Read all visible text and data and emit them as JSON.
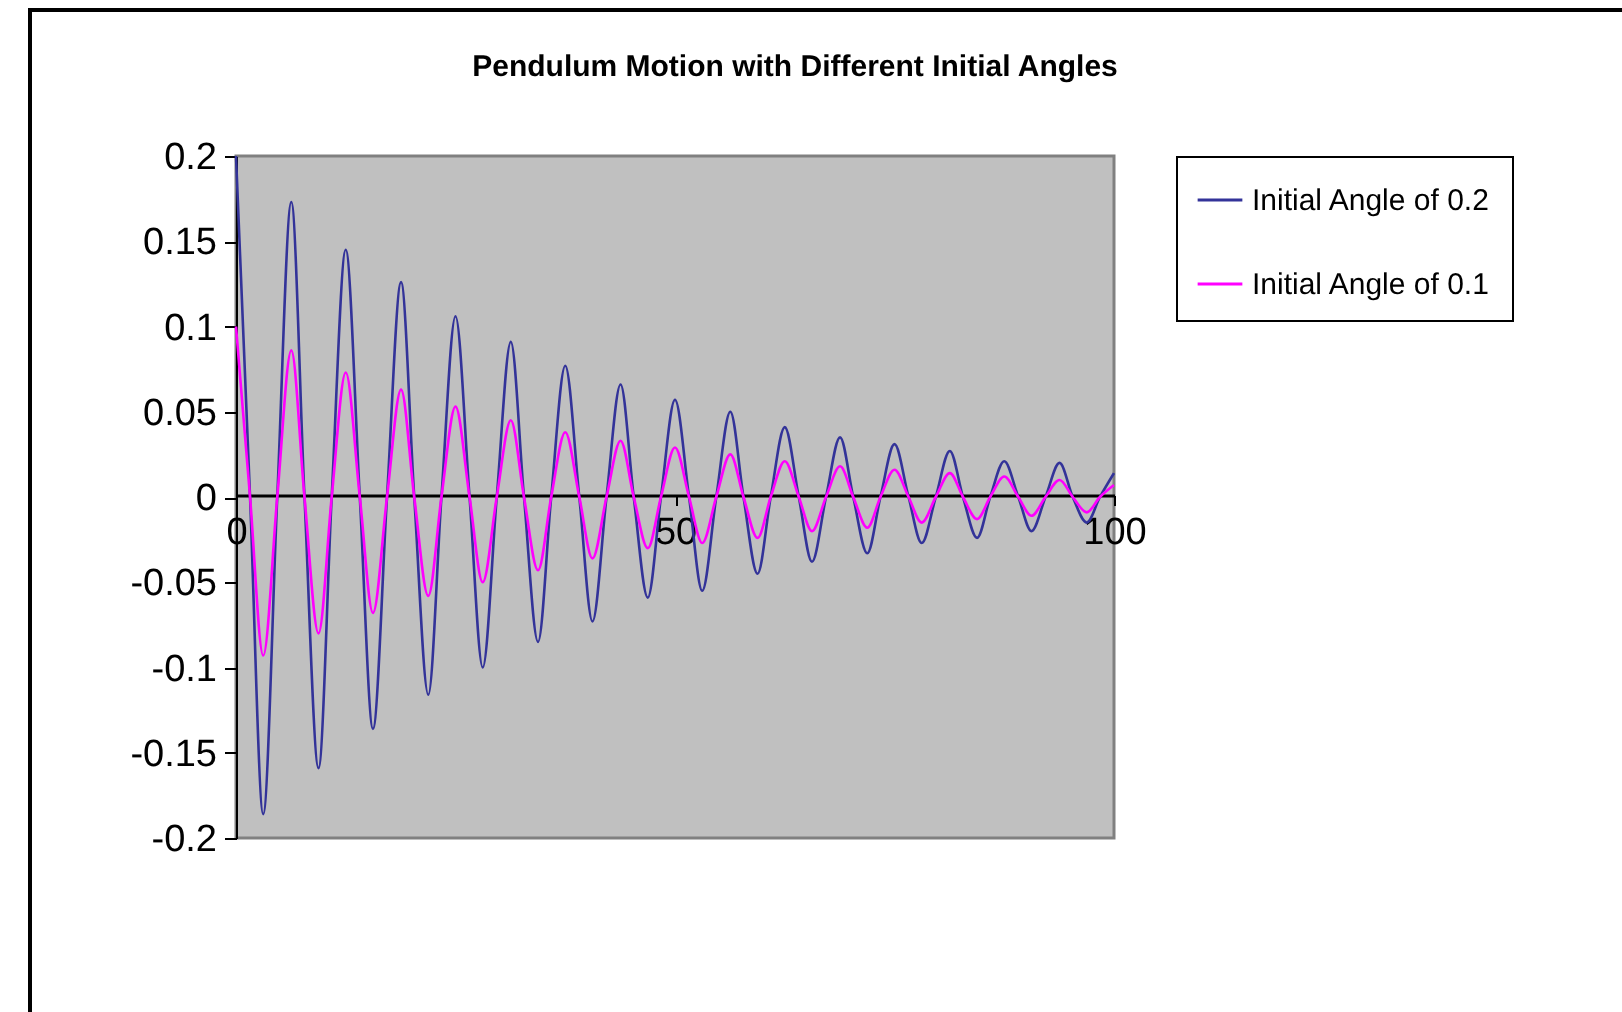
{
  "chart_data": {
    "type": "line",
    "title": "Pendulum Motion with Different Initial Angles",
    "x": [
      0,
      1.6,
      3.1,
      4.7,
      6.3,
      7.8,
      9.4,
      10.9,
      12.5,
      14.1,
      15.6,
      17.2,
      18.8,
      20.3,
      21.9,
      23.4,
      25,
      26.6,
      28.1,
      29.7,
      31.3,
      32.8,
      34.4,
      35.9,
      37.5,
      39.1,
      40.6,
      42.2,
      43.8,
      45.3,
      46.9,
      48.4,
      50,
      51.6,
      53.1,
      54.7,
      56.3,
      57.8,
      59.4,
      60.9,
      62.5,
      64.1,
      65.6,
      67.2,
      68.8,
      70.3,
      71.9,
      73.4,
      75,
      76.6,
      78.1,
      79.7,
      81.3,
      82.8,
      84.4,
      85.9,
      87.5,
      89.1,
      90.6,
      92.2,
      93.8,
      95.3,
      96.9,
      98.4,
      100
    ],
    "series": [
      {
        "name": "Initial Angle of 0.2",
        "color": "#333399",
        "values": [
          0.2,
          0,
          -0.186,
          0,
          0.173,
          0,
          -0.159,
          0,
          0.145,
          0,
          -0.136,
          0,
          0.126,
          0,
          -0.116,
          0,
          0.106,
          0,
          -0.1,
          0,
          0.091,
          0,
          -0.085,
          0,
          0.077,
          0,
          -0.073,
          0,
          0.066,
          0,
          -0.059,
          0,
          0.057,
          0,
          -0.055,
          0,
          0.05,
          0,
          -0.045,
          0,
          0.041,
          0,
          -0.038,
          0,
          0.035,
          0,
          -0.033,
          0,
          0.031,
          0,
          -0.027,
          0,
          0.027,
          0,
          -0.024,
          0,
          0.021,
          0,
          -0.02,
          0,
          0.02,
          0,
          -0.015,
          0,
          0.014
        ]
      },
      {
        "name": "Initial Angle of 0.1",
        "color": "#ff00ff",
        "values": [
          0.1,
          0,
          -0.093,
          0,
          0.086,
          0,
          -0.08,
          0,
          0.073,
          0,
          -0.068,
          0,
          0.063,
          0,
          -0.058,
          0,
          0.053,
          0,
          -0.05,
          0,
          0.045,
          0,
          -0.043,
          0,
          0.038,
          0,
          -0.036,
          0,
          0.033,
          0,
          -0.03,
          0,
          0.029,
          0,
          -0.027,
          0,
          0.025,
          0,
          -0.024,
          0,
          0.021,
          0,
          -0.02,
          0,
          0.018,
          0,
          -0.018,
          0,
          0.016,
          0,
          -0.015,
          0,
          0.014,
          0,
          -0.013,
          0,
          0.012,
          0,
          -0.011,
          0,
          0.01,
          0,
          -0.009,
          0,
          0.007
        ]
      }
    ],
    "xlim": [
      0,
      100
    ],
    "xticks": [
      0,
      50,
      100
    ],
    "ylim": [
      -0.2,
      0.2
    ],
    "yticks": [
      -0.2,
      -0.15,
      -0.1,
      -0.05,
      0,
      0.05,
      0.1,
      0.15,
      0.2
    ],
    "grid": false,
    "legend": "right",
    "marker": "none",
    "line_style": "solid"
  }
}
